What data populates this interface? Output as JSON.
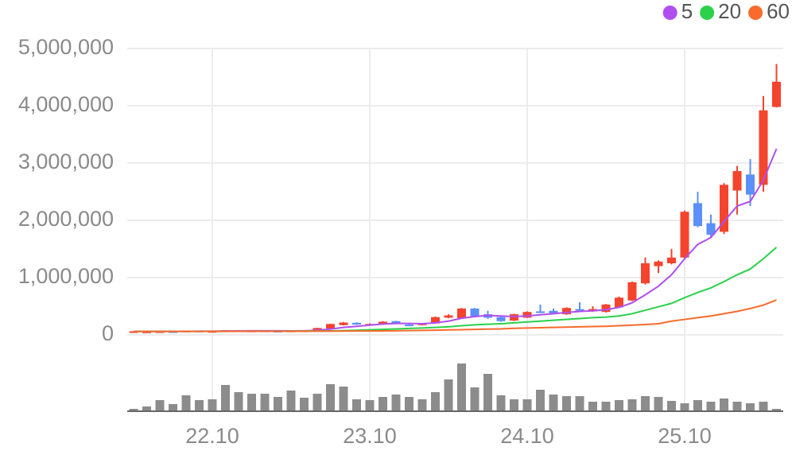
{
  "chart_data": {
    "type": "candlestick",
    "categories": [
      null,
      null,
      null,
      null,
      null,
      null,
      "22.10",
      null,
      null,
      null,
      null,
      null,
      null,
      null,
      null,
      null,
      null,
      null,
      "23.10",
      null,
      null,
      null,
      null,
      null,
      null,
      null,
      null,
      null,
      null,
      null,
      "24.10",
      null,
      null,
      null,
      null,
      null,
      null,
      null,
      null,
      null,
      null,
      null,
      "25.10",
      null,
      null,
      null,
      null,
      null,
      null,
      null
    ],
    "ohlc": {
      "up_color": "#f4442e",
      "down_color": "#5b8ff9",
      "open": [
        58000,
        52000,
        60000,
        62000,
        62000,
        72000,
        64000,
        62000,
        82000,
        72000,
        74000,
        70000,
        64000,
        72000,
        80000,
        110000,
        170000,
        210000,
        180000,
        180000,
        240000,
        180000,
        170000,
        200000,
        300000,
        290000,
        460000,
        360000,
        310000,
        250000,
        300000,
        410000,
        420000,
        360000,
        450000,
        410000,
        400000,
        480000,
        600000,
        900000,
        1200000,
        1250000,
        1350000,
        2300000,
        1950000,
        1800000,
        2520000,
        2800000,
        2620000,
        3980000
      ],
      "high": [
        65000,
        60000,
        63000,
        64000,
        74000,
        74000,
        68000,
        84000,
        84000,
        76000,
        76000,
        72000,
        76000,
        78000,
        125000,
        195000,
        225000,
        220000,
        200000,
        240000,
        245000,
        190000,
        205000,
        320000,
        360000,
        470000,
        470000,
        420000,
        320000,
        370000,
        410000,
        530000,
        460000,
        480000,
        570000,
        500000,
        540000,
        670000,
        930000,
        1350000,
        1300000,
        1500000,
        2170000,
        2500000,
        2100000,
        2650000,
        2950000,
        3070000,
        4170000,
        4730000
      ],
      "low": [
        56000,
        50000,
        58000,
        58000,
        60000,
        64000,
        62000,
        60000,
        70000,
        70000,
        68000,
        62000,
        62000,
        70000,
        78000,
        105000,
        165000,
        175000,
        175000,
        175000,
        185000,
        160000,
        165000,
        195000,
        290000,
        280000,
        310000,
        280000,
        230000,
        240000,
        295000,
        380000,
        360000,
        350000,
        410000,
        400000,
        390000,
        470000,
        590000,
        880000,
        1080000,
        1230000,
        1330000,
        1880000,
        1700000,
        1760000,
        2100000,
        2250000,
        2500000,
        3970000
      ],
      "close": [
        62000,
        58000,
        62000,
        60000,
        72000,
        66000,
        66000,
        82000,
        74000,
        74000,
        70000,
        64000,
        74000,
        76000,
        120000,
        190000,
        215000,
        180000,
        190000,
        230000,
        190000,
        165000,
        200000,
        310000,
        340000,
        460000,
        320000,
        300000,
        240000,
        360000,
        400000,
        390000,
        370000,
        470000,
        420000,
        450000,
        530000,
        650000,
        920000,
        1250000,
        1280000,
        1350000,
        2150000,
        1900000,
        1750000,
        2620000,
        2860000,
        2450000,
        3920000,
        4420000
      ]
    },
    "series": [
      {
        "name": "5",
        "color": "#b04ef0",
        "values": [
          60000,
          60000,
          60000,
          61000,
          62000,
          64000,
          65000,
          67000,
          70000,
          72000,
          72000,
          71000,
          70000,
          72000,
          80000,
          100000,
          130000,
          150000,
          170000,
          190000,
          200000,
          200000,
          195000,
          210000,
          240000,
          290000,
          320000,
          340000,
          330000,
          320000,
          330000,
          350000,
          370000,
          390000,
          410000,
          420000,
          440000,
          480000,
          560000,
          700000,
          850000,
          1050000,
          1330000,
          1580000,
          1700000,
          1980000,
          2250000,
          2330000,
          2700000,
          3250000
        ]
      },
      {
        "name": "20",
        "color": "#2bd14b",
        "values": [
          60000,
          60000,
          60000,
          60000,
          61000,
          61000,
          62000,
          62000,
          63000,
          64000,
          65000,
          65000,
          66000,
          67000,
          68000,
          70000,
          75000,
          80000,
          88000,
          95000,
          105000,
          112000,
          120000,
          130000,
          140000,
          160000,
          175000,
          185000,
          195000,
          210000,
          225000,
          240000,
          255000,
          270000,
          285000,
          300000,
          310000,
          330000,
          370000,
          430000,
          490000,
          550000,
          650000,
          740000,
          820000,
          930000,
          1050000,
          1150000,
          1330000,
          1530000
        ]
      },
      {
        "name": "60",
        "color": "#fa6a2c",
        "values": [
          60000,
          60000,
          60000,
          60000,
          60000,
          61000,
          61000,
          61000,
          62000,
          62000,
          62000,
          63000,
          63000,
          64000,
          64000,
          65000,
          66000,
          67000,
          68000,
          70000,
          72000,
          75000,
          78000,
          82000,
          86000,
          90000,
          95000,
          100000,
          105000,
          115000,
          120000,
          125000,
          130000,
          135000,
          140000,
          145000,
          150000,
          160000,
          170000,
          180000,
          195000,
          240000,
          270000,
          300000,
          330000,
          370000,
          410000,
          460000,
          520000,
          610000
        ]
      }
    ],
    "volume": {
      "color": "#8c8c8c",
      "values": [
        3,
        6,
        14,
        9,
        20,
        14,
        15,
        33,
        24,
        22,
        22,
        18,
        26,
        17,
        22,
        34,
        31,
        15,
        14,
        18,
        21,
        18,
        15,
        24,
        40,
        60,
        30,
        47,
        20,
        15,
        15,
        27,
        21,
        19,
        19,
        12,
        12,
        14,
        15,
        19,
        18,
        13,
        10,
        14,
        12,
        16,
        12,
        10,
        12,
        3
      ]
    },
    "ylim": [
      0,
      5000000
    ],
    "yticks": [
      0,
      {
        "value": 1000000,
        "label": "1,000,000"
      },
      {
        "value": 2000000,
        "label": "2,000,000"
      },
      {
        "value": 3000000,
        "label": "3,000,000"
      },
      {
        "value": 4000000,
        "label": "4,000,000"
      },
      {
        "value": 5000000,
        "label": "5,000,000"
      }
    ],
    "grid": true,
    "legend": "top-right"
  }
}
